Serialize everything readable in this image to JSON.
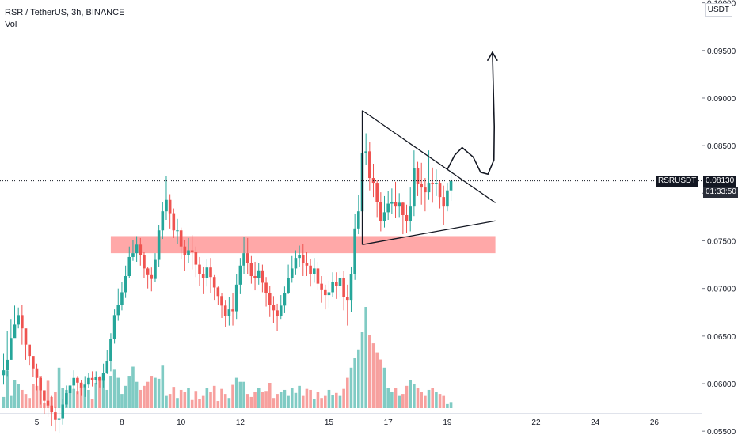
{
  "header": {
    "symbol_line": "RSR / TetherUS, 3h, BINANCE",
    "volume_label": "Vol"
  },
  "price_axis": {
    "unit": "USDT",
    "ticks": [
      "0.10000",
      "0.09500",
      "0.09000",
      "0.08500",
      "0.08000",
      "0.07500",
      "0.07000",
      "0.06500",
      "0.06000",
      "0.05500"
    ],
    "last_price": "0.08130",
    "last_price_symbol": "RSRUSDT",
    "countdown": "01:33:50"
  },
  "colors": {
    "up": "#26a69a",
    "down": "#ef5350",
    "volume_up": "#80cbc4",
    "volume_down": "#f7a09e",
    "zone": "#ff9999",
    "label_bg": "#131722"
  },
  "chart_data": {
    "type": "candlestick",
    "timeframe": "3h",
    "x_axis_ticks": [
      {
        "label": "5",
        "index": 9
      },
      {
        "label": "8",
        "index": 32
      },
      {
        "label": "10",
        "index": 48
      },
      {
        "label": "12",
        "index": 64
      },
      {
        "label": "15",
        "index": 88
      },
      {
        "label": "17",
        "index": 104
      },
      {
        "label": "19",
        "index": 120
      },
      {
        "label": "22",
        "index": 144
      },
      {
        "label": "24",
        "index": 160
      },
      {
        "label": "26",
        "index": 176
      }
    ],
    "ylim": [
      0.0546,
      0.1003
    ],
    "closes": [
      0.0614,
      0.0625,
      0.0648,
      0.0662,
      0.0672,
      0.0658,
      0.0641,
      0.0629,
      0.0616,
      0.0606,
      0.0593,
      0.0582,
      0.0577,
      0.057,
      0.0562,
      0.0563,
      0.0578,
      0.059,
      0.0598,
      0.0606,
      0.0601,
      0.0596,
      0.0599,
      0.0606,
      0.0604,
      0.0607,
      0.0603,
      0.0611,
      0.0624,
      0.0647,
      0.0672,
      0.0683,
      0.0696,
      0.0713,
      0.0733,
      0.0737,
      0.0746,
      0.0735,
      0.0721,
      0.0714,
      0.071,
      0.073,
      0.0761,
      0.0781,
      0.0793,
      0.0779,
      0.0761,
      0.0761,
      0.0744,
      0.0735,
      0.074,
      0.0738,
      0.0725,
      0.0715,
      0.0711,
      0.0722,
      0.0712,
      0.0701,
      0.0692,
      0.0682,
      0.0671,
      0.0678,
      0.0676,
      0.0704,
      0.0724,
      0.0737,
      0.0727,
      0.0713,
      0.0711,
      0.0719,
      0.0706,
      0.0695,
      0.0683,
      0.0677,
      0.0671,
      0.0682,
      0.0695,
      0.0711,
      0.0721,
      0.0732,
      0.0735,
      0.0727,
      0.0724,
      0.0715,
      0.0721,
      0.0705,
      0.0699,
      0.0693,
      0.0696,
      0.0707,
      0.0703,
      0.0711,
      0.0691,
      0.0688,
      0.0715,
      0.0763,
      0.0781,
      0.0842,
      0.0844,
      0.0816,
      0.0811,
      0.0791,
      0.0771,
      0.078,
      0.0789,
      0.0791,
      0.0786,
      0.079,
      0.0777,
      0.0771,
      0.0786,
      0.0826,
      0.081,
      0.0806,
      0.0801,
      0.0811,
      0.081,
      0.0811,
      0.0796,
      0.0786,
      0.0803,
      0.0813
    ],
    "highs": [
      0.0632,
      0.0655,
      0.0668,
      0.0682,
      0.068,
      0.0683,
      0.0652,
      0.0638,
      0.0627,
      0.0621,
      0.0607,
      0.0588,
      0.0584,
      0.0587,
      0.0576,
      0.0575,
      0.0584,
      0.0598,
      0.0606,
      0.0614,
      0.0608,
      0.0604,
      0.0608,
      0.0611,
      0.0613,
      0.0613,
      0.0608,
      0.0621,
      0.0635,
      0.0653,
      0.0678,
      0.07,
      0.0707,
      0.0724,
      0.0744,
      0.0751,
      0.0755,
      0.0753,
      0.0738,
      0.0723,
      0.0722,
      0.0737,
      0.0767,
      0.0791,
      0.0818,
      0.0799,
      0.0784,
      0.0773,
      0.0764,
      0.0751,
      0.0753,
      0.0756,
      0.0744,
      0.0733,
      0.0723,
      0.0731,
      0.0732,
      0.0714,
      0.0702,
      0.0695,
      0.0688,
      0.0691,
      0.0695,
      0.0715,
      0.0732,
      0.0754,
      0.0753,
      0.0734,
      0.0728,
      0.0727,
      0.0725,
      0.0712,
      0.0703,
      0.0692,
      0.0684,
      0.0693,
      0.0702,
      0.0725,
      0.0734,
      0.074,
      0.0745,
      0.0747,
      0.0738,
      0.0731,
      0.0732,
      0.0728,
      0.0713,
      0.0704,
      0.0708,
      0.0717,
      0.0717,
      0.0719,
      0.0718,
      0.0704,
      0.0723,
      0.0778,
      0.0798,
      0.0866,
      0.0863,
      0.0854,
      0.0831,
      0.0814,
      0.0801,
      0.0797,
      0.0802,
      0.0805,
      0.0812,
      0.08,
      0.0791,
      0.0788,
      0.0806,
      0.0845,
      0.0833,
      0.0832,
      0.0816,
      0.0845,
      0.0827,
      0.0825,
      0.0814,
      0.0808,
      0.0811,
      0.0825
    ],
    "lows": [
      0.0599,
      0.0608,
      0.0627,
      0.0649,
      0.0658,
      0.0641,
      0.0625,
      0.0619,
      0.0607,
      0.0593,
      0.0578,
      0.0568,
      0.0565,
      0.0556,
      0.055,
      0.0548,
      0.0557,
      0.0575,
      0.0584,
      0.0594,
      0.0589,
      0.0587,
      0.0586,
      0.0595,
      0.0597,
      0.0599,
      0.0596,
      0.0596,
      0.061,
      0.0613,
      0.0642,
      0.0666,
      0.0677,
      0.069,
      0.0711,
      0.0729,
      0.0728,
      0.0724,
      0.0711,
      0.07,
      0.0697,
      0.0707,
      0.0723,
      0.0752,
      0.0772,
      0.0763,
      0.0753,
      0.0747,
      0.0731,
      0.0718,
      0.0727,
      0.072,
      0.0712,
      0.0703,
      0.0694,
      0.0702,
      0.0695,
      0.0688,
      0.0683,
      0.0669,
      0.0659,
      0.0661,
      0.0661,
      0.0668,
      0.0694,
      0.0715,
      0.0715,
      0.0705,
      0.0698,
      0.0704,
      0.0696,
      0.0681,
      0.067,
      0.0664,
      0.0655,
      0.0668,
      0.0674,
      0.0694,
      0.0706,
      0.0714,
      0.0723,
      0.0713,
      0.0713,
      0.0702,
      0.0706,
      0.0698,
      0.0685,
      0.0678,
      0.068,
      0.0691,
      0.0689,
      0.0691,
      0.0677,
      0.0661,
      0.0675,
      0.0709,
      0.0757,
      0.0769,
      0.083,
      0.0803,
      0.0796,
      0.0775,
      0.076,
      0.0764,
      0.0772,
      0.0778,
      0.0774,
      0.0775,
      0.0757,
      0.0758,
      0.076,
      0.0776,
      0.0797,
      0.0788,
      0.0781,
      0.0793,
      0.079,
      0.0797,
      0.0784,
      0.0767,
      0.0781,
      0.0792
    ],
    "volume": [
      11,
      37,
      12,
      28,
      24,
      18,
      14,
      10,
      24,
      22,
      32,
      5,
      27,
      11,
      16,
      40,
      20,
      18,
      22,
      19,
      17,
      21,
      20,
      18,
      9,
      25,
      28,
      30,
      18,
      32,
      38,
      30,
      14,
      22,
      32,
      41,
      26,
      18,
      22,
      26,
      32,
      30,
      29,
      42,
      12,
      14,
      21,
      10,
      18,
      16,
      20,
      8,
      17,
      9,
      12,
      20,
      16,
      22,
      7,
      19,
      14,
      10,
      23,
      30,
      26,
      26,
      14,
      11,
      16,
      20,
      16,
      17,
      25,
      10,
      14,
      16,
      18,
      12,
      20,
      15,
      22,
      12,
      19,
      18,
      9,
      16,
      10,
      12,
      18,
      13,
      15,
      12,
      19,
      30,
      40,
      50,
      58,
      75,
      100,
      72,
      64,
      55,
      48,
      40,
      20,
      16,
      20,
      12,
      14,
      22,
      28,
      24,
      20,
      16,
      12,
      18,
      20,
      16,
      14,
      12,
      4,
      6
    ],
    "volume_ylim": [
      0,
      100
    ],
    "drawings": {
      "support_zone": {
        "from_index": 29,
        "to_index": 133,
        "price_low": 0.0737,
        "price_high": 0.0755
      },
      "triangle_upper": [
        {
          "index": 97,
          "price": 0.0887
        },
        {
          "index": 133,
          "price": 0.079
        }
      ],
      "triangle_lower": [
        {
          "index": 97,
          "price": 0.0746
        },
        {
          "index": 133,
          "price": 0.0771
        }
      ],
      "triangle_left_edge": [
        {
          "index": 97,
          "price": 0.0887
        },
        {
          "index": 97,
          "price": 0.0746
        }
      ],
      "projection_arrow_points": [
        {
          "index": 120,
          "price": 0.0825
        },
        {
          "index": 122,
          "price": 0.084
        },
        {
          "index": 124,
          "price": 0.0848
        },
        {
          "index": 127,
          "price": 0.0838
        },
        {
          "index": 129,
          "price": 0.0822
        },
        {
          "index": 131,
          "price": 0.082
        },
        {
          "index": 132.6,
          "price": 0.0835
        },
        {
          "index": 132.7,
          "price": 0.087
        },
        {
          "index": 132.2,
          "price": 0.0948
        }
      ]
    }
  }
}
